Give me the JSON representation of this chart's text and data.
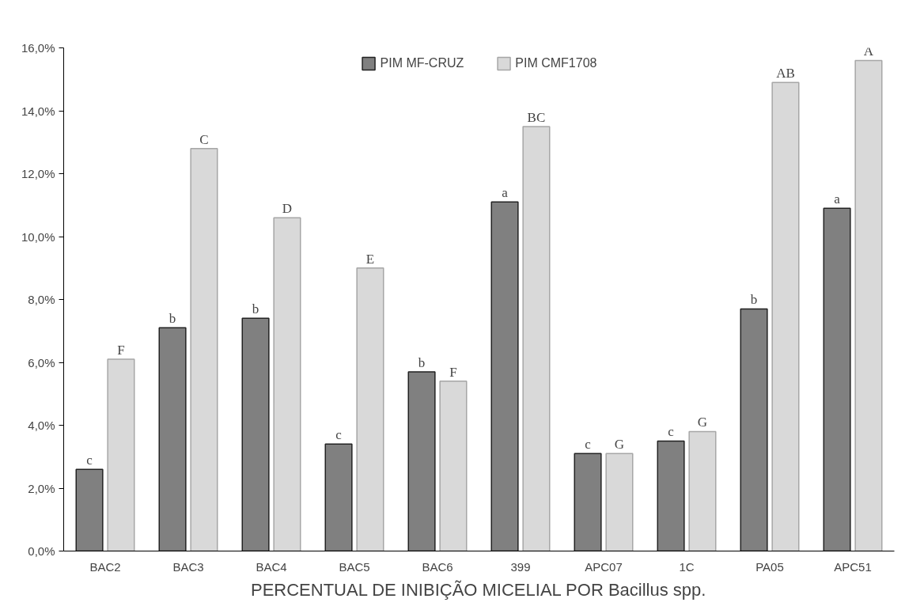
{
  "chart_data": {
    "type": "bar",
    "xlabel": "PERCENTUAL DE INIBIÇÃO MICELIAL POR Bacillus spp.",
    "categories": [
      "BAC2",
      "BAC3",
      "BAC4",
      "BAC5",
      "BAC6",
      "399",
      "APC07",
      "1C",
      "PA05",
      "APC51"
    ],
    "series": [
      {
        "name": "PIM MF-CRUZ",
        "color": "#808080",
        "values": [
          2.6,
          7.1,
          7.4,
          3.4,
          5.7,
          11.1,
          3.1,
          3.5,
          7.7,
          10.9
        ],
        "value_labels": [
          "c",
          "b",
          "b",
          "c",
          "b",
          "a",
          "c",
          "c",
          "b",
          "a"
        ]
      },
      {
        "name": "PIM CMF1708",
        "color": "#d9d9d9",
        "values": [
          6.1,
          12.8,
          10.6,
          9.0,
          5.4,
          13.5,
          3.1,
          3.8,
          14.9,
          15.6
        ],
        "value_labels": [
          "F",
          "C",
          "D",
          "E",
          "F",
          "BC",
          "G",
          "G",
          "AB",
          "A"
        ]
      }
    ],
    "ylim": [
      0,
      16
    ],
    "yticks": [
      {
        "value": 0,
        "label": "0,0%"
      },
      {
        "value": 2,
        "label": "2,0%"
      },
      {
        "value": 4,
        "label": "4,0%"
      },
      {
        "value": 6,
        "label": "6,0%"
      },
      {
        "value": 8,
        "label": "8,0%"
      },
      {
        "value": 10,
        "label": "10,0%"
      },
      {
        "value": 12,
        "label": "12,0%"
      },
      {
        "value": 14,
        "label": "14,0%"
      },
      {
        "value": 16,
        "label": "16,0%"
      }
    ],
    "grid": false,
    "legend": "top"
  }
}
